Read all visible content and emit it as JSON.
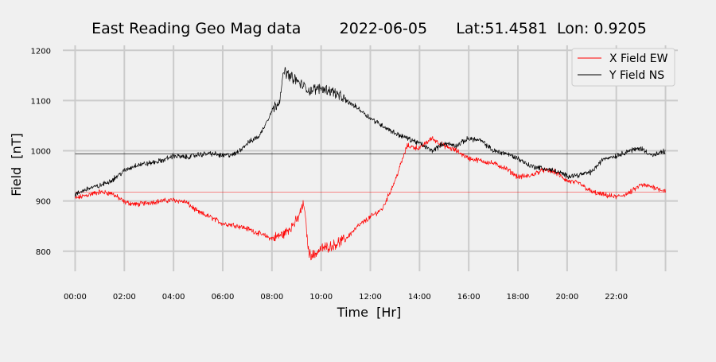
{
  "colors": {
    "background": "#f0f0f0",
    "grid": "#cbcbcb",
    "x_series": "#ff0000",
    "y_series": "#000000"
  },
  "chart_data": {
    "type": "line",
    "title": "East Reading Geo Mag data        2022-06-05      Lat:51.4581  Lon: 0.9205",
    "xlabel": "Time  [Hr]",
    "ylabel": "Field  [nT]",
    "xlim": [
      -0.5,
      24.5
    ],
    "ylim": [
      760,
      1210
    ],
    "x_ticks": [
      0,
      2,
      4,
      6,
      8,
      10,
      12,
      14,
      16,
      18,
      20,
      22
    ],
    "x_tick_labels": [
      "00:00",
      "02:00",
      "04:00",
      "06:00",
      "08:00",
      "10:00",
      "12:00",
      "14:00",
      "16:00",
      "18:00",
      "20:00",
      "22:00"
    ],
    "y_ticks": [
      800,
      900,
      1000,
      1100,
      1200
    ],
    "y_tick_labels": [
      "800",
      "900",
      "1000",
      "1100",
      "1200"
    ],
    "grid": true,
    "legend": "top-right",
    "series": [
      {
        "name": "X Field EW",
        "color": "#ff0000",
        "baseline": 918,
        "x": [
          0,
          0.5,
          1,
          1.5,
          2,
          2.5,
          3,
          3.5,
          4,
          4.5,
          5,
          5.5,
          6,
          6.5,
          7,
          7.5,
          8,
          8.5,
          9,
          9.3,
          9.5,
          9.7,
          10,
          10.5,
          11,
          11.5,
          12,
          12.5,
          13,
          13.5,
          14,
          14.5,
          15,
          15.5,
          16,
          16.5,
          17,
          17.5,
          18,
          18.5,
          19,
          19.5,
          20,
          20.5,
          21,
          21.5,
          22,
          22.5,
          23,
          23.5,
          24
        ],
        "values": [
          905,
          912,
          918,
          915,
          898,
          893,
          897,
          900,
          902,
          898,
          878,
          868,
          855,
          852,
          845,
          835,
          825,
          835,
          860,
          895,
          795,
          792,
          805,
          812,
          825,
          850,
          868,
          885,
          940,
          1010,
          1005,
          1025,
          1010,
          1000,
          985,
          980,
          975,
          965,
          948,
          950,
          962,
          958,
          940,
          935,
          918,
          912,
          908,
          915,
          932,
          928,
          920
        ]
      },
      {
        "name": "Y Field NS",
        "color": "#000000",
        "baseline": 994,
        "x": [
          0,
          0.5,
          1,
          1.5,
          2,
          2.5,
          3,
          3.5,
          4,
          4.5,
          5,
          5.5,
          6,
          6.5,
          7,
          7.5,
          8,
          8.3,
          8.5,
          8.7,
          9,
          9.5,
          10,
          10.5,
          11,
          11.5,
          12,
          12.5,
          13,
          13.5,
          14,
          14.5,
          15,
          15.5,
          16,
          16.5,
          17,
          17.5,
          18,
          18.5,
          19,
          19.5,
          20,
          20.5,
          21,
          21.5,
          22,
          22.5,
          23,
          23.5,
          24
        ],
        "values": [
          912,
          925,
          930,
          942,
          960,
          972,
          975,
          980,
          990,
          987,
          992,
          995,
          990,
          993,
          1015,
          1030,
          1080,
          1100,
          1160,
          1150,
          1140,
          1120,
          1125,
          1118,
          1100,
          1085,
          1065,
          1050,
          1035,
          1025,
          1015,
          1000,
          1015,
          1010,
          1025,
          1020,
          1000,
          995,
          985,
          970,
          965,
          960,
          950,
          952,
          958,
          985,
          990,
          1000,
          1005,
          990,
          1000
        ]
      }
    ]
  }
}
